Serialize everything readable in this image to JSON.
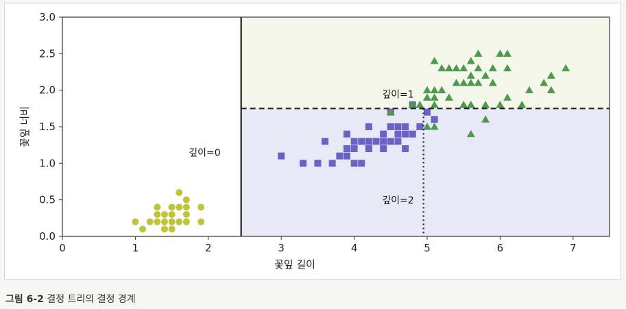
{
  "chart_data": {
    "type": "scatter",
    "title": "",
    "xlabel": "꽃잎 길이",
    "ylabel": "꽃잎 너비",
    "xlim": [
      0,
      7.5
    ],
    "ylim": [
      0,
      3.0
    ],
    "x_ticks": [
      "0",
      "1",
      "2",
      "3",
      "4",
      "5",
      "6",
      "7"
    ],
    "y_ticks": [
      "0.0",
      "0.5",
      "1.0",
      "1.5",
      "2.0",
      "2.5",
      "3.0"
    ],
    "grid": false,
    "regions": [
      {
        "x_range": [
          0,
          2.45
        ],
        "y_range": [
          0,
          3.0
        ],
        "color": "#ffffff"
      },
      {
        "x_range": [
          2.45,
          7.5
        ],
        "y_range": [
          0,
          1.75
        ],
        "color": "#e8e8f7"
      },
      {
        "x_range": [
          2.45,
          7.5
        ],
        "y_range": [
          1.75,
          3.0
        ],
        "color": "#f4f7ea"
      }
    ],
    "boundaries": [
      {
        "orientation": "vertical",
        "x": 2.45,
        "y_range": [
          0,
          3.0
        ],
        "style": "solid",
        "label": "깊이=0",
        "label_at": [
          1.95,
          1.1
        ]
      },
      {
        "orientation": "horizontal",
        "y": 1.75,
        "x_range": [
          2.45,
          7.5
        ],
        "style": "dashed",
        "label": "깊이=1",
        "label_at": [
          4.6,
          1.9
        ]
      },
      {
        "orientation": "vertical",
        "x": 4.95,
        "y_range": [
          0,
          1.75
        ],
        "style": "dotted",
        "label": "깊이=2",
        "label_at": [
          4.6,
          0.45
        ]
      }
    ],
    "series": [
      {
        "marker": "circle",
        "color": "#bfc43a",
        "points": [
          [
            1.0,
            0.2
          ],
          [
            1.1,
            0.1
          ],
          [
            1.2,
            0.2
          ],
          [
            1.3,
            0.2
          ],
          [
            1.3,
            0.3
          ],
          [
            1.3,
            0.4
          ],
          [
            1.4,
            0.1
          ],
          [
            1.4,
            0.2
          ],
          [
            1.4,
            0.3
          ],
          [
            1.5,
            0.1
          ],
          [
            1.5,
            0.2
          ],
          [
            1.5,
            0.3
          ],
          [
            1.5,
            0.4
          ],
          [
            1.6,
            0.2
          ],
          [
            1.6,
            0.4
          ],
          [
            1.6,
            0.6
          ],
          [
            1.7,
            0.2
          ],
          [
            1.7,
            0.3
          ],
          [
            1.7,
            0.4
          ],
          [
            1.7,
            0.5
          ],
          [
            1.9,
            0.2
          ],
          [
            1.9,
            0.4
          ]
        ]
      },
      {
        "marker": "square",
        "color": "#6b63c3",
        "points": [
          [
            3.0,
            1.1
          ],
          [
            3.3,
            1.0
          ],
          [
            3.5,
            1.0
          ],
          [
            3.6,
            1.3
          ],
          [
            3.7,
            1.0
          ],
          [
            3.8,
            1.1
          ],
          [
            3.9,
            1.1
          ],
          [
            3.9,
            1.2
          ],
          [
            3.9,
            1.4
          ],
          [
            4.0,
            1.0
          ],
          [
            4.0,
            1.2
          ],
          [
            4.0,
            1.3
          ],
          [
            4.1,
            1.0
          ],
          [
            4.1,
            1.3
          ],
          [
            4.2,
            1.2
          ],
          [
            4.2,
            1.3
          ],
          [
            4.2,
            1.5
          ],
          [
            4.3,
            1.3
          ],
          [
            4.4,
            1.2
          ],
          [
            4.4,
            1.3
          ],
          [
            4.4,
            1.4
          ],
          [
            4.5,
            1.3
          ],
          [
            4.5,
            1.5
          ],
          [
            4.5,
            1.7
          ],
          [
            4.6,
            1.3
          ],
          [
            4.6,
            1.4
          ],
          [
            4.6,
            1.5
          ],
          [
            4.7,
            1.2
          ],
          [
            4.7,
            1.4
          ],
          [
            4.7,
            1.5
          ],
          [
            4.8,
            1.4
          ],
          [
            4.8,
            1.8
          ],
          [
            4.9,
            1.5
          ],
          [
            5.0,
            1.7
          ],
          [
            5.1,
            1.6
          ]
        ]
      },
      {
        "marker": "triangle",
        "color": "#4e9a4e",
        "points": [
          [
            4.5,
            1.7
          ],
          [
            4.8,
            1.8
          ],
          [
            4.9,
            1.8
          ],
          [
            5.0,
            1.5
          ],
          [
            5.0,
            1.9
          ],
          [
            5.0,
            2.0
          ],
          [
            5.1,
            1.5
          ],
          [
            5.1,
            1.8
          ],
          [
            5.1,
            1.9
          ],
          [
            5.1,
            2.0
          ],
          [
            5.1,
            2.4
          ],
          [
            5.2,
            2.0
          ],
          [
            5.2,
            2.3
          ],
          [
            5.3,
            1.9
          ],
          [
            5.3,
            2.3
          ],
          [
            5.4,
            2.1
          ],
          [
            5.4,
            2.3
          ],
          [
            5.5,
            1.8
          ],
          [
            5.5,
            2.1
          ],
          [
            5.5,
            2.3
          ],
          [
            5.6,
            1.4
          ],
          [
            5.6,
            1.8
          ],
          [
            5.6,
            2.1
          ],
          [
            5.6,
            2.2
          ],
          [
            5.6,
            2.4
          ],
          [
            5.7,
            2.1
          ],
          [
            5.7,
            2.3
          ],
          [
            5.7,
            2.5
          ],
          [
            5.8,
            1.6
          ],
          [
            5.8,
            1.8
          ],
          [
            5.8,
            2.2
          ],
          [
            5.9,
            2.1
          ],
          [
            5.9,
            2.3
          ],
          [
            6.0,
            1.8
          ],
          [
            6.0,
            2.5
          ],
          [
            6.1,
            1.9
          ],
          [
            6.1,
            2.3
          ],
          [
            6.1,
            2.5
          ],
          [
            6.3,
            1.8
          ],
          [
            6.4,
            2.0
          ],
          [
            6.6,
            2.1
          ],
          [
            6.7,
            2.0
          ],
          [
            6.7,
            2.2
          ],
          [
            6.9,
            2.3
          ]
        ]
      }
    ]
  },
  "caption": {
    "figure_number": "그림 6-2",
    "text": "결정 트리의 결정 경계"
  }
}
